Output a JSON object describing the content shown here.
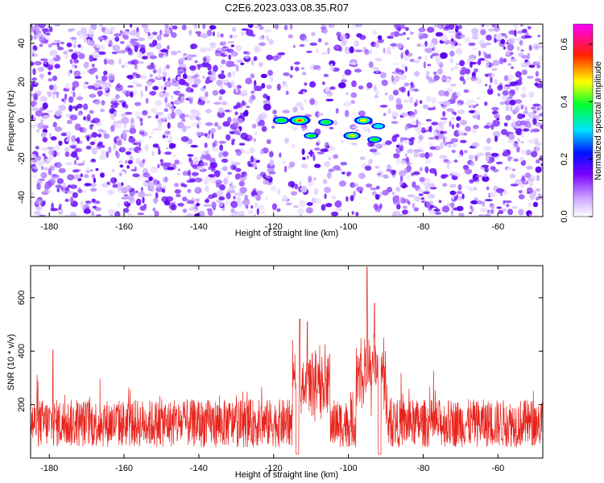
{
  "chart_data": [
    {
      "type": "heatmap",
      "title": "C2E6.2023.033.08.35.R07",
      "xlabel": "Height of straight line (km)",
      "ylabel": "Frequency (Hz)",
      "xlim": [
        -185,
        -48
      ],
      "ylim": [
        -50,
        50
      ],
      "xticks": [
        -180,
        -160,
        -140,
        -120,
        -100,
        -80,
        -60
      ],
      "yticks": [
        -40,
        -20,
        0,
        20,
        40
      ],
      "colorbar": {
        "label": "Normalized spectral amplitude",
        "range": [
          0.0,
          0.67
        ],
        "ticks": [
          0.0,
          0.2,
          0.4,
          0.6
        ],
        "colors": [
          "#ffffff",
          "#9b30ff",
          "#0000ff",
          "#00ffff",
          "#00ff00",
          "#ffff00",
          "#ff0000",
          "#ff00ff"
        ]
      },
      "hotspots": [
        {
          "x": -113,
          "y": 0,
          "value": 0.62
        },
        {
          "x": -118,
          "y": 0,
          "value": 0.35
        },
        {
          "x": -106,
          "y": -1,
          "value": 0.3
        },
        {
          "x": -110,
          "y": -8,
          "value": 0.25
        },
        {
          "x": -96,
          "y": 0,
          "value": 0.45
        },
        {
          "x": -99,
          "y": -8,
          "value": 0.4
        },
        {
          "x": -93,
          "y": -10,
          "value": 0.25
        },
        {
          "x": -92,
          "y": -3,
          "value": 0.2
        }
      ],
      "grid": false
    },
    {
      "type": "line",
      "xlabel": "Height of straight line (km)",
      "ylabel": "SNR (10 * v/v)",
      "xlim": [
        -185,
        -48
      ],
      "ylim": [
        0,
        720
      ],
      "xticks": [
        -180,
        -160,
        -140,
        -120,
        -100,
        -80,
        -60
      ],
      "yticks": [
        200,
        400,
        600
      ],
      "color": "#e8231c",
      "baseline_mean": 130,
      "peaks": [
        {
          "x": -113,
          "y": 520
        },
        {
          "x": -111,
          "y": 510
        },
        {
          "x": -95,
          "y": 715
        },
        {
          "x": -93,
          "y": 580
        },
        {
          "x": -179,
          "y": 405
        }
      ],
      "grid": false
    }
  ]
}
